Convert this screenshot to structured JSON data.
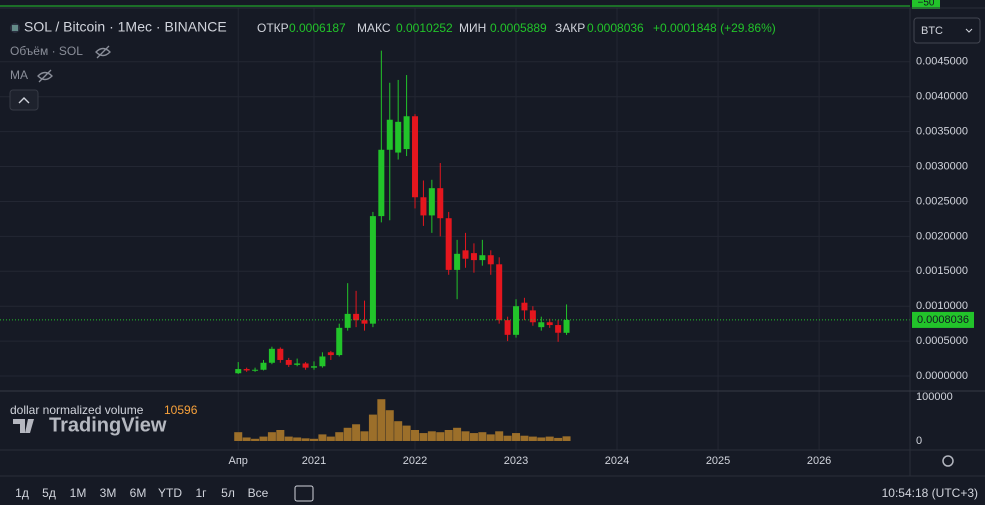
{
  "header": {
    "symbol": "SOL / Bitcoin · 1Мес · BINANCE",
    "open_label": "ОТКР",
    "high_label": "МАКС",
    "low_label": "МИН",
    "close_label": "ЗАКР",
    "change": "+0.0001848 (+29.86%)",
    "currency": "BTC",
    "top_pane_label": "−50"
  },
  "indicators": [
    "Объём · SOL",
    "MA"
  ],
  "volume_label": "dollar normalized volume",
  "logo": "TradingView",
  "toolbar": {
    "ranges": [
      "1д",
      "5д",
      "1M",
      "3M",
      "6M",
      "YTD",
      "1г",
      "5л",
      "Все"
    ],
    "clock": "10:54:18 (UTC+3)"
  },
  "chart_data": {
    "type": "candlestick",
    "up_color": "#22c42a",
    "down_color": "#e5161e",
    "volume_color": "#9c6f2a",
    "grid": true,
    "open": [
      4e-05,
      0.0001,
      8e-05,
      9e-05,
      0.00019,
      0.00039,
      0.00023,
      0.00016,
      0.00018,
      0.00012,
      0.00014,
      0.00034,
      0.0003,
      0.00069,
      0.00089,
      0.0008,
      0.00075,
      0.00229,
      0.00324,
      0.0032,
      0.00325,
      0.00372,
      0.00256,
      0.0023,
      0.00269,
      0.00226,
      0.00152,
      0.0018,
      0.00176,
      0.00166,
      0.00173,
      0.0016,
      0.0008,
      0.00059,
      0.00105,
      0.00094,
      0.0007,
      0.00077,
      0.00073,
      0.0006187
    ],
    "high": [
      0.0002,
      0.00012,
      0.00012,
      0.00023,
      0.00042,
      0.00041,
      0.00026,
      0.00025,
      0.0002,
      0.00021,
      0.00034,
      0.00036,
      0.00075,
      0.00133,
      0.00122,
      0.00108,
      0.00235,
      0.00466,
      0.0042,
      0.00424,
      0.00431,
      0.00375,
      0.0028,
      0.00281,
      0.00305,
      0.00235,
      0.00195,
      0.00205,
      0.0019,
      0.00195,
      0.0018,
      0.0017,
      0.00085,
      0.0011,
      0.00112,
      0.001,
      0.00085,
      0.00082,
      0.0008,
      0.0010252
    ],
    "low": [
      3e-05,
      6e-05,
      6e-05,
      8e-05,
      0.00017,
      0.00019,
      0.00013,
      0.00014,
      9e-05,
      9e-05,
      0.00012,
      0.00023,
      0.00028,
      0.00065,
      0.0007,
      0.00065,
      0.0007,
      0.0022,
      0.00223,
      0.0031,
      0.00315,
      0.0024,
      0.00215,
      0.00205,
      0.002,
      0.00145,
      0.0011,
      0.00155,
      0.00148,
      0.00158,
      0.00145,
      0.00075,
      0.0005,
      0.00055,
      0.0008,
      0.00072,
      0.00065,
      0.00069,
      0.00049,
      0.0005889
    ],
    "close": [
      0.0001,
      8e-05,
      9e-05,
      0.00019,
      0.00039,
      0.00023,
      0.00016,
      0.00018,
      0.00012,
      0.00014,
      0.00028,
      0.0003,
      0.00069,
      0.00089,
      0.0008,
      0.00075,
      0.00229,
      0.00324,
      0.00367,
      0.00364,
      0.00372,
      0.00256,
      0.0023,
      0.00269,
      0.00226,
      0.00152,
      0.00175,
      0.00168,
      0.00166,
      0.00173,
      0.0016,
      0.0008,
      0.00059,
      0.001,
      0.00094,
      0.00077,
      0.00077,
      0.00073,
      0.00062,
      0.0008036
    ],
    "volume": [
      20000,
      8000,
      5000,
      10000,
      20000,
      25000,
      10000,
      8000,
      6000,
      5000,
      15000,
      10000,
      20000,
      30000,
      38000,
      22000,
      60000,
      95000,
      70000,
      45000,
      35000,
      25000,
      18000,
      22000,
      20000,
      25000,
      30000,
      22000,
      18000,
      20000,
      15000,
      22000,
      12000,
      18000,
      12000,
      10000,
      8000,
      10000,
      7000,
      10596
    ],
    "xlim": [
      -28.3,
      79.8
    ],
    "xticks": [
      {
        "value": 0,
        "label": "Апр"
      },
      {
        "value": 9,
        "label": "2021"
      },
      {
        "value": 21,
        "label": "2022"
      },
      {
        "value": 33,
        "label": "2023"
      },
      {
        "value": 45,
        "label": "2024"
      },
      {
        "value": 57,
        "label": "2025"
      },
      {
        "value": 69,
        "label": "2026"
      }
    ],
    "ylim": [
      -0.0002,
      0.00527
    ],
    "yticks": [
      {
        "value": 0,
        "label": "0.0000000"
      },
      {
        "value": 0.0005,
        "label": "0.0005000"
      },
      {
        "value": 0.001,
        "label": "0.0010000"
      },
      {
        "value": 0.0015,
        "label": "0.0015000"
      },
      {
        "value": 0.002,
        "label": "0.0020000"
      },
      {
        "value": 0.0025,
        "label": "0.0025000"
      },
      {
        "value": 0.003,
        "label": "0.0030000"
      },
      {
        "value": 0.0035,
        "label": "0.0035000"
      },
      {
        "value": 0.004,
        "label": "0.0040000"
      },
      {
        "value": 0.0045,
        "label": "0.0045000"
      }
    ],
    "y2lim": [
      -20500,
      111400
    ],
    "y2ticks": [
      0,
      100000
    ]
  }
}
